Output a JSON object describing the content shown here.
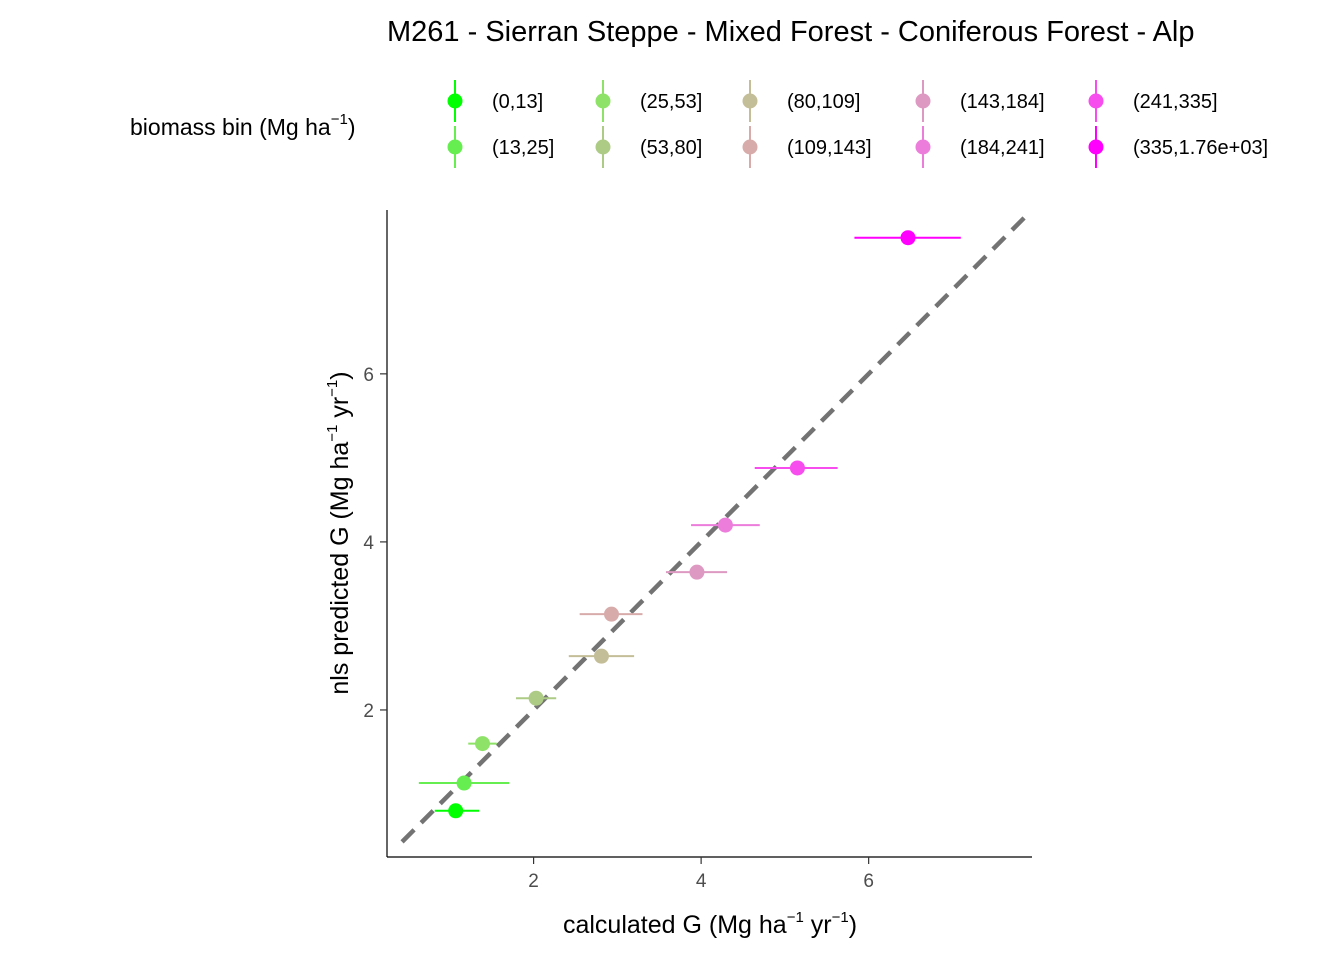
{
  "chart_data": {
    "type": "scatter",
    "title": "M261 - Sierran Steppe - Mixed Forest - Coniferous Forest - Alp",
    "xlabel": {
      "parts": [
        "calculated G (Mg ha",
        "−1",
        " yr",
        "−1",
        ")"
      ]
    },
    "ylabel": {
      "parts": [
        "nls predicted G (Mg ha",
        "−1",
        " yr",
        "−1",
        ")"
      ]
    },
    "legend": {
      "title_parts": [
        "biomass bin (Mg ha",
        "−1",
        ")"
      ],
      "placement": "top",
      "items": [
        {
          "label": "(0,13]",
          "color": "#00FF00"
        },
        {
          "label": "(13,25]",
          "color": "#66EE50"
        },
        {
          "label": "(25,53]",
          "color": "#8EE268"
        },
        {
          "label": "(53,80]",
          "color": "#AECB86"
        },
        {
          "label": "(80,109]",
          "color": "#C4BE98"
        },
        {
          "label": "(109,143]",
          "color": "#D8ABAB"
        },
        {
          "label": "(143,184]",
          "color": "#DE99C2"
        },
        {
          "label": "(184,241]",
          "color": "#EC7DDB"
        },
        {
          "label": "(241,335]",
          "color": "#F84DEE"
        },
        {
          "label": "(335,1.76e+03]",
          "color": "#FF00FF"
        }
      ]
    },
    "xlim": [
      0.25,
      7.95
    ],
    "ylim": [
      0.25,
      7.95
    ],
    "x_ticks": [
      2,
      4,
      6
    ],
    "y_ticks": [
      2,
      4,
      6
    ],
    "grid": false,
    "reference_line": {
      "slope": 1,
      "intercept": 0,
      "style": "dashed",
      "color": "#737373"
    },
    "points": [
      {
        "bin": "(0,13]",
        "x": 1.07,
        "y": 0.8,
        "xmin": 0.82,
        "xmax": 1.35
      },
      {
        "bin": "(13,25]",
        "x": 1.17,
        "y": 1.13,
        "xmin": 0.63,
        "xmax": 1.71
      },
      {
        "bin": "(25,53]",
        "x": 1.39,
        "y": 1.6,
        "xmin": 1.22,
        "xmax": 1.56
      },
      {
        "bin": "(53,80]",
        "x": 2.03,
        "y": 2.14,
        "xmin": 1.79,
        "xmax": 2.27
      },
      {
        "bin": "(80,109]",
        "x": 2.81,
        "y": 2.64,
        "xmin": 2.42,
        "xmax": 3.2
      },
      {
        "bin": "(109,143]",
        "x": 2.93,
        "y": 3.14,
        "xmin": 2.55,
        "xmax": 3.3
      },
      {
        "bin": "(143,184]",
        "x": 3.95,
        "y": 3.64,
        "xmin": 3.58,
        "xmax": 4.31
      },
      {
        "bin": "(184,241]",
        "x": 4.29,
        "y": 4.2,
        "xmin": 3.88,
        "xmax": 4.7
      },
      {
        "bin": "(241,335]",
        "x": 5.15,
        "y": 4.88,
        "xmin": 4.64,
        "xmax": 5.63
      },
      {
        "bin": "(335,1.76e+03]",
        "x": 6.47,
        "y": 7.62,
        "xmin": 5.83,
        "xmax": 7.1
      }
    ]
  }
}
